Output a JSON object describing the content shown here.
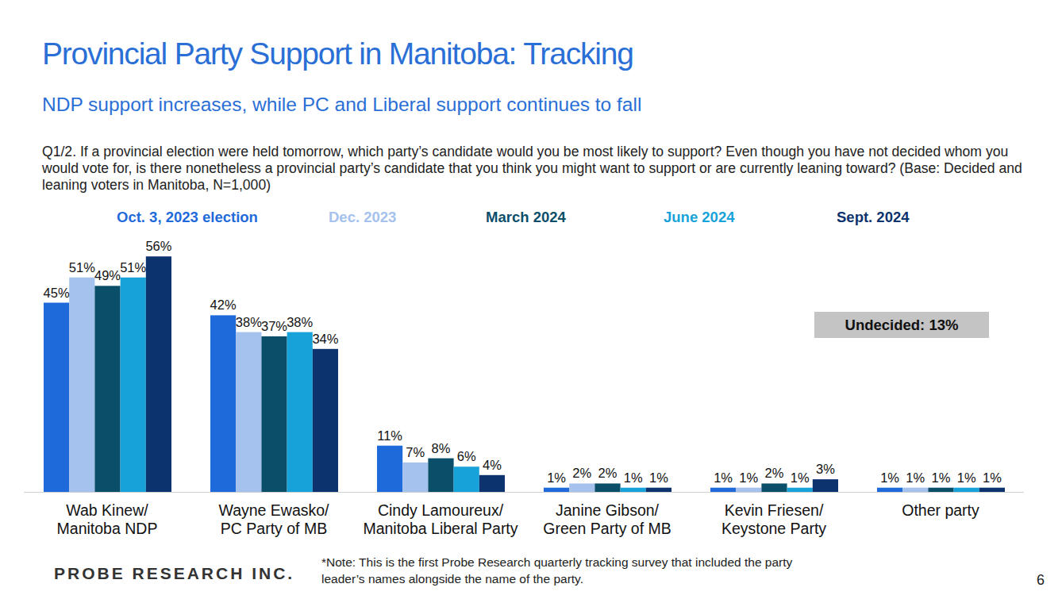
{
  "chart_data": {
    "type": "bar",
    "title": "Provincial Party Support in Manitoba: Tracking",
    "subtitle": "NDP support increases, while PC and Liberal support continues to fall",
    "question": "Q1/2. If a provincial election were held tomorrow, which party’s candidate would you be most likely to support? Even though you have not decided whom you would vote for, is there nonetheless a provincial party’s candidate that you think you might want to support or are currently leaning toward? (Base: Decided and leaning voters in Manitoba, N=1,000)",
    "annotations": [
      "Undecided: 13%"
    ],
    "note": "*Note: This is the first Probe Research quarterly tracking survey that included the party leader’s names alongside the name of the party.",
    "footer": {
      "brand": "PROBE RESEARCH INC.",
      "page": "6"
    },
    "categories": [
      "Wab Kinew/\nManitoba NDP",
      "Wayne Ewasko/\nPC Party of MB",
      "Cindy Lamoureux/\nManitoba Liberal Party",
      "Janine Gibson/\nGreen Party of MB",
      "Kevin Friesen/\nKeystone Party",
      "Other party"
    ],
    "series": [
      {
        "name": "Oct. 3, 2023 election",
        "color": "#1f6adb",
        "values": [
          45,
          42,
          11,
          1,
          1,
          1
        ],
        "value_labels": [
          "45%",
          "42%",
          "11%",
          "1%",
          "1%",
          "1%"
        ]
      },
      {
        "name": "Dec. 2023",
        "color": "#a5c1ee",
        "values": [
          51,
          38,
          7,
          2,
          1,
          1
        ],
        "value_labels": [
          "51%",
          "38%",
          "7%",
          "2%",
          "1%",
          "1%"
        ]
      },
      {
        "name": "March 2024",
        "color": "#0b4e6a",
        "values": [
          49,
          37,
          8,
          2,
          2,
          1
        ],
        "value_labels": [
          "49%",
          "37%",
          "8%",
          "2%",
          "2%",
          "1%"
        ]
      },
      {
        "name": "June 2024",
        "color": "#17a3da",
        "values": [
          51,
          38,
          6,
          1,
          1,
          1
        ],
        "value_labels": [
          "51%",
          "38%",
          "6%",
          "1%",
          "1%",
          "1%"
        ]
      },
      {
        "name": "Sept. 2024",
        "color": "#0d336e",
        "values": [
          56,
          34,
          4,
          1,
          3,
          1
        ],
        "value_labels": [
          "56%",
          "34%",
          "4%",
          "1%",
          "3%",
          "1%"
        ]
      }
    ],
    "ylim": [
      0,
      60
    ],
    "grid": false,
    "data_labels": true,
    "tick_labels": "x"
  }
}
